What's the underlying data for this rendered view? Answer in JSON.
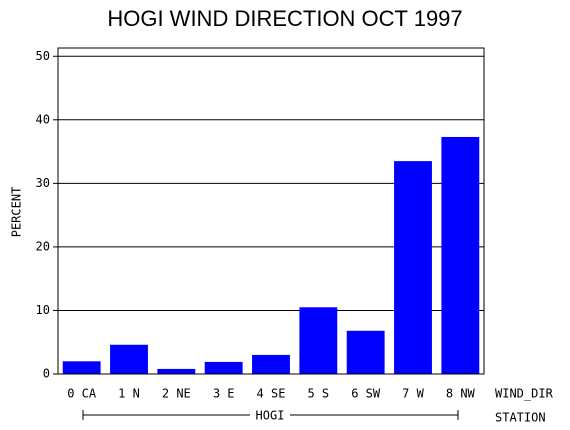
{
  "chart_data": {
    "type": "bar",
    "title": "HOGI WIND DIRECTION OCT 1997",
    "y_label": "PERCENT",
    "x_label": "WIND_DIR",
    "group_axis_label": "STATION",
    "group_label": "HOGI",
    "categories": [
      "0 CA",
      "1 N",
      "2 NE",
      "3 E",
      "4 SE",
      "5 S",
      "6 SW",
      "7 W",
      "8 NW"
    ],
    "values": [
      2.0,
      4.6,
      0.8,
      1.9,
      3.0,
      10.5,
      6.8,
      33.5,
      37.3
    ],
    "color": "#0000ff",
    "ylim": [
      0,
      51.3
    ],
    "yticks": [
      0,
      10,
      20,
      30,
      40,
      50
    ],
    "grid": true
  }
}
